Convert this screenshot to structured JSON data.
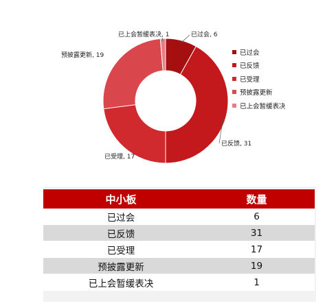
{
  "chart_data": {
    "type": "pie",
    "donut": true,
    "title": "",
    "categories": [
      "已过会",
      "已反馈",
      "已受理",
      "预披露更新",
      "已上会暂缓表决"
    ],
    "values": [
      6,
      31,
      17,
      19,
      1
    ],
    "colors": [
      "#a50f0f",
      "#c4191c",
      "#d02a2f",
      "#d9464c",
      "#e57f83"
    ],
    "data_labels": [
      "已过会, 6",
      "已反馈, 31",
      "已受理, 17",
      "预披露更新, 19",
      "已上会暂缓表决, 1"
    ],
    "legend": [
      "已过会",
      "已反馈",
      "已受理",
      "预披露更新",
      "已上会暂缓表决"
    ],
    "legend_position": "right"
  },
  "table": {
    "headers": [
      "中小板",
      "数量"
    ],
    "rows": [
      [
        "已过会",
        "6"
      ],
      [
        "已反馈",
        "31"
      ],
      [
        "已受理",
        "17"
      ],
      [
        "预披露更新",
        "19"
      ],
      [
        "已上会暂缓表决",
        "1"
      ]
    ],
    "header_color": "#c00000",
    "stripe_color": "#d9d9d9"
  }
}
